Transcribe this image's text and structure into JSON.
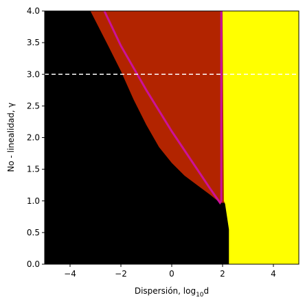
{
  "chart_data": {
    "type": "heatmap",
    "xlabel_main": "Dispersión, log",
    "xlabel_sub": "10",
    "xlabel_tail": "d",
    "ylabel": "No - linealidad, γ",
    "xlim": [
      -5,
      5
    ],
    "ylim": [
      0,
      4
    ],
    "xticks": [
      -4,
      -2,
      0,
      2,
      4
    ],
    "xtick_labels": [
      "−4",
      "−2",
      "0",
      "2",
      "4"
    ],
    "yticks": [
      0.0,
      0.5,
      1.0,
      1.5,
      2.0,
      2.5,
      3.0,
      3.5,
      4.0
    ],
    "ytick_labels": [
      "0.0",
      "0.5",
      "1.0",
      "1.5",
      "2.0",
      "2.5",
      "3.0",
      "3.5",
      "4.0"
    ],
    "regions": [
      {
        "color": "#000000",
        "boundary_x": [
          -5,
          -3.2,
          -2.5,
          -2.0,
          -1.5,
          -1.0,
          -0.5,
          0.0,
          0.5,
          1.0,
          1.5,
          2.0,
          2.2,
          2.2
        ],
        "boundary_y": [
          4.0,
          4.0,
          3.45,
          3.05,
          2.6,
          2.2,
          1.85,
          1.6,
          1.4,
          1.25,
          1.1,
          0.97,
          0.5,
          0.0
        ]
      },
      {
        "color": "#b22400",
        "boundary_x": [
          -3.2,
          2.1,
          2.1,
          1.9,
          1.5,
          1.0,
          0.5,
          0.0,
          -0.5,
          -1.0,
          -1.5,
          -2.0,
          -2.5
        ],
        "boundary_y": [
          4.0,
          4.0,
          0.97,
          0.97,
          1.1,
          1.25,
          1.4,
          1.6,
          1.85,
          2.2,
          2.6,
          3.05,
          3.45
        ]
      },
      {
        "color": "#ffff00",
        "boundary_x": [
          2.0,
          5.0,
          5.0,
          2.25,
          2.25,
          2.1,
          2.05,
          2.0
        ],
        "boundary_y": [
          4.0,
          4.0,
          0.0,
          0.0,
          0.55,
          0.95,
          1.0,
          4.0
        ]
      }
    ],
    "curves": [
      {
        "color": "#cc1199",
        "x": [
          -2.65,
          -2.0,
          -1.0,
          0.0,
          1.0,
          1.5,
          1.9,
          1.95
        ],
        "y": [
          4.0,
          3.45,
          2.75,
          2.1,
          1.5,
          1.2,
          0.97,
          1.0
        ]
      },
      {
        "color": "#cc1199",
        "x": [
          1.95,
          1.95
        ],
        "y": [
          1.0,
          4.0
        ]
      }
    ],
    "hline": {
      "y": 3.0,
      "color": "#ffffff",
      "style": "dashed"
    }
  }
}
